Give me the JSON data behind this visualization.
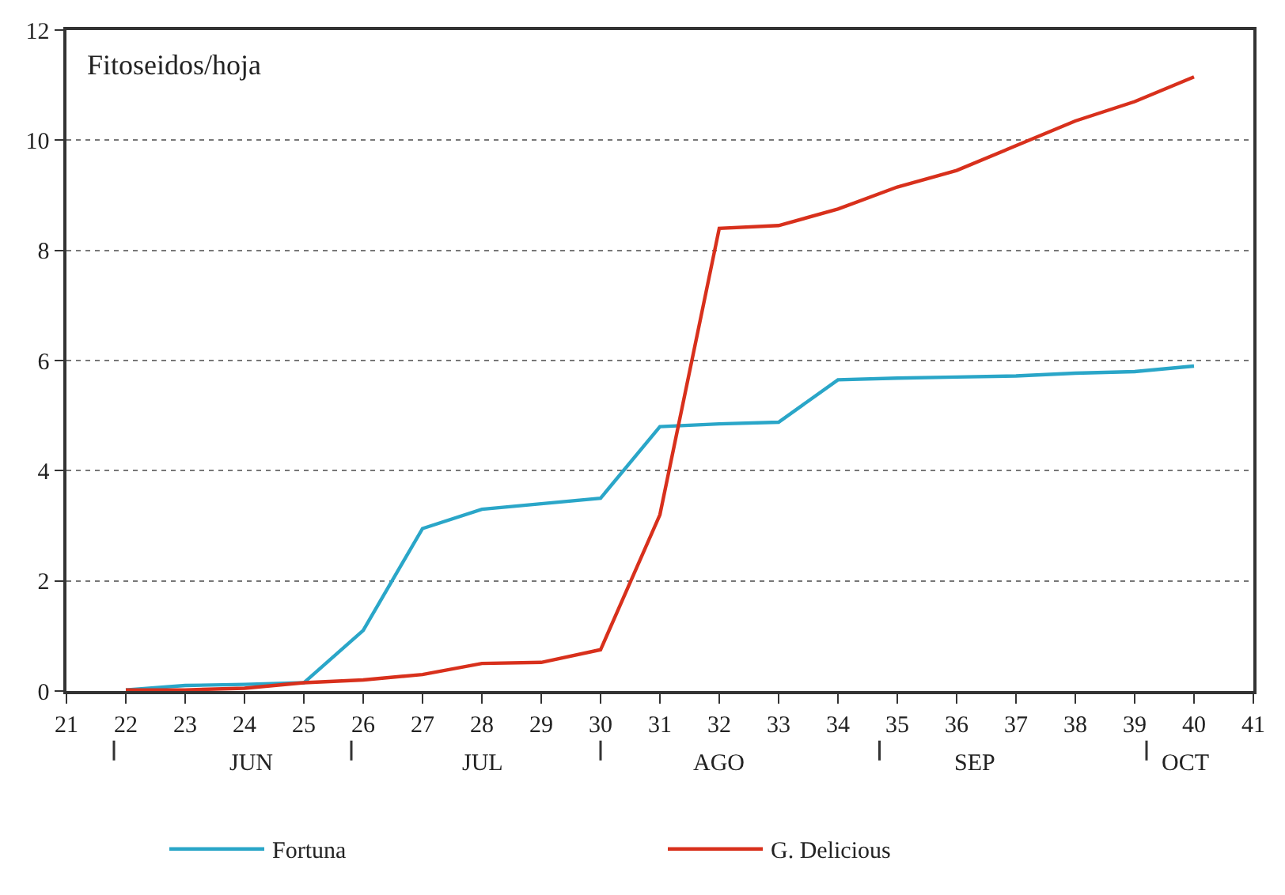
{
  "chart_data": {
    "type": "line",
    "ylabel": "Fitoseidos/hoja",
    "x": [
      22,
      23,
      24,
      25,
      26,
      27,
      28,
      29,
      30,
      31,
      32,
      33,
      34,
      35,
      36,
      37,
      38,
      39,
      40
    ],
    "series": [
      {
        "name": "Fortuna",
        "color": "#2aa6c8",
        "values": [
          0.02,
          0.1,
          0.12,
          0.15,
          1.1,
          2.95,
          3.3,
          3.4,
          3.5,
          4.8,
          4.85,
          4.88,
          5.65,
          5.68,
          5.7,
          5.72,
          5.77,
          5.8,
          5.9
        ]
      },
      {
        "name": "G. Delicious",
        "color": "#d8301c",
        "values": [
          0.02,
          0.02,
          0.05,
          0.15,
          0.2,
          0.3,
          0.5,
          0.52,
          0.75,
          3.2,
          8.4,
          8.45,
          8.75,
          9.15,
          9.45,
          9.9,
          10.35,
          10.7,
          11.15
        ]
      }
    ],
    "xlim": [
      21,
      41
    ],
    "xticks": [
      21,
      22,
      23,
      24,
      25,
      26,
      27,
      28,
      29,
      30,
      31,
      32,
      33,
      34,
      35,
      36,
      37,
      38,
      39,
      40,
      41
    ],
    "ylim": [
      0,
      12
    ],
    "yticks": [
      0,
      2,
      4,
      6,
      8,
      10,
      12
    ],
    "annotations": [
      "JUN",
      "JUL",
      "AGO",
      "SEP",
      "OCT"
    ],
    "grid": "y",
    "legend": "bottom",
    "marker": "none",
    "line_style": "solid"
  }
}
